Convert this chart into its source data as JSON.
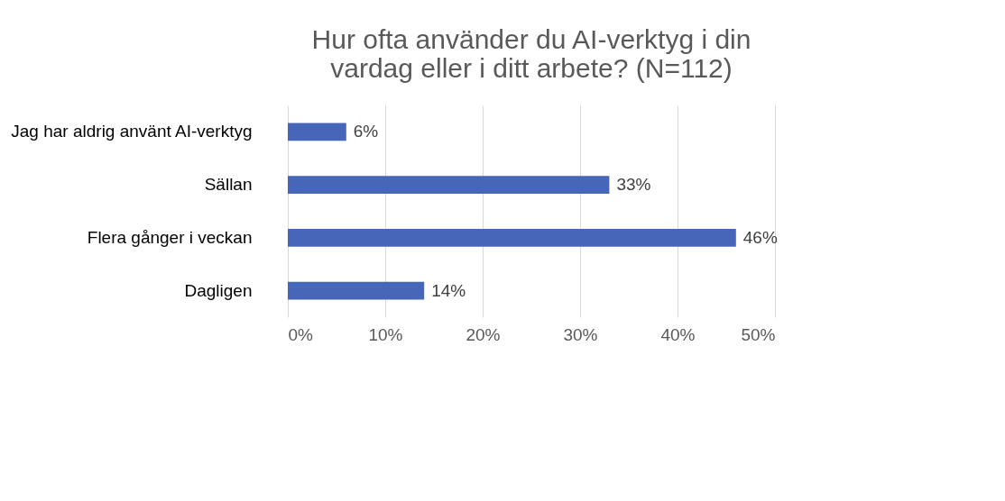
{
  "chart_data": {
    "type": "bar",
    "orientation": "horizontal",
    "title": "Hur ofta använder du AI-verktyg i din vardag eller i ditt arbete? (N=112)",
    "categories": [
      "Jag har aldrig använt AI-verktyg",
      "Sällan",
      "Flera gånger i veckan",
      "Dagligen"
    ],
    "values": [
      6,
      33,
      46,
      14
    ],
    "color": "#4666b9",
    "value_labels": [
      "6%",
      "33%",
      "46%",
      "14%"
    ],
    "xlim": [
      0,
      50
    ],
    "xticks": [
      {
        "value": 0,
        "label": "0%"
      },
      {
        "value": 10,
        "label": "10%"
      },
      {
        "value": 20,
        "label": "20%"
      },
      {
        "value": 30,
        "label": "30%"
      },
      {
        "value": 40,
        "label": "40%"
      },
      {
        "value": 50,
        "label": "50%"
      }
    ],
    "grid": "x"
  }
}
